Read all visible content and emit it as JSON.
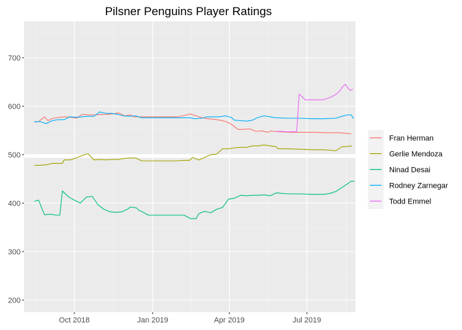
{
  "chart_data": {
    "type": "line",
    "title": "Pilsner Penguins Player Ratings",
    "xlabel": "",
    "ylabel": "",
    "xlim": [
      "2018-08-03",
      "2019-08-27"
    ],
    "ylim": [
      175,
      775
    ],
    "x_ticks": [
      {
        "date": "2018-10-01",
        "label": "Oct 2018"
      },
      {
        "date": "2019-01-01",
        "label": "Jan 2019"
      },
      {
        "date": "2019-04-01",
        "label": "Apr 2019"
      },
      {
        "date": "2019-07-01",
        "label": "Jul 2019"
      }
    ],
    "y_ticks": [
      200,
      300,
      400,
      500,
      600,
      700
    ],
    "grid": true,
    "reference_line": {
      "y": 497,
      "color": "#ffffff"
    },
    "legend": {
      "position": "right"
    },
    "series": [
      {
        "name": "Fran Herman",
        "color": "#F8766D",
        "points": [
          [
            "2018-08-15",
            567
          ],
          [
            "2018-08-20",
            568
          ],
          [
            "2018-08-27",
            578
          ],
          [
            "2018-08-31",
            570
          ],
          [
            "2018-09-06",
            575
          ],
          [
            "2018-09-14",
            577
          ],
          [
            "2018-09-20",
            578
          ],
          [
            "2018-09-27",
            577
          ],
          [
            "2018-10-01",
            576
          ],
          [
            "2018-10-04",
            575
          ],
          [
            "2018-10-10",
            583
          ],
          [
            "2018-10-18",
            582
          ],
          [
            "2018-10-25",
            582
          ],
          [
            "2018-11-01",
            583
          ],
          [
            "2018-11-08",
            583
          ],
          [
            "2018-11-15",
            584
          ],
          [
            "2018-11-22",
            586
          ],
          [
            "2018-11-29",
            580
          ],
          [
            "2018-12-06",
            582
          ],
          [
            "2018-12-10",
            578
          ],
          [
            "2018-12-20",
            578
          ],
          [
            "2019-01-03",
            578
          ],
          [
            "2019-01-17",
            578
          ],
          [
            "2019-01-31",
            578
          ],
          [
            "2019-02-10",
            582
          ],
          [
            "2019-02-14",
            584
          ],
          [
            "2019-02-21",
            580
          ],
          [
            "2019-02-28",
            576
          ],
          [
            "2019-03-07",
            574
          ],
          [
            "2019-03-14",
            573
          ],
          [
            "2019-03-21",
            571
          ],
          [
            "2019-03-28",
            568
          ],
          [
            "2019-04-01",
            565
          ],
          [
            "2019-04-04",
            562
          ],
          [
            "2019-04-11",
            552
          ],
          [
            "2019-04-18",
            552
          ],
          [
            "2019-04-25",
            553
          ],
          [
            "2019-05-02",
            548
          ],
          [
            "2019-05-09",
            549
          ],
          [
            "2019-05-16",
            546
          ],
          [
            "2019-05-20",
            549
          ],
          [
            "2019-05-23",
            548
          ],
          [
            "2019-05-30",
            547
          ],
          [
            "2019-06-13",
            546
          ],
          [
            "2019-06-27",
            546
          ],
          [
            "2019-07-11",
            546
          ],
          [
            "2019-07-25",
            545
          ],
          [
            "2019-08-01",
            545
          ],
          [
            "2019-08-08",
            545
          ],
          [
            "2019-08-15",
            544
          ],
          [
            "2019-08-22",
            543
          ]
        ]
      },
      {
        "name": "Gerlie Mendoza",
        "color": "#A3A500",
        "points": [
          [
            "2018-08-15",
            478
          ],
          [
            "2018-08-22",
            478
          ],
          [
            "2018-08-29",
            479
          ],
          [
            "2018-09-05",
            482
          ],
          [
            "2018-09-10",
            482
          ],
          [
            "2018-09-17",
            482
          ],
          [
            "2018-09-19",
            489
          ],
          [
            "2018-09-26",
            489
          ],
          [
            "2018-10-03",
            493
          ],
          [
            "2018-10-10",
            498
          ],
          [
            "2018-10-17",
            502
          ],
          [
            "2018-10-24",
            489
          ],
          [
            "2018-10-31",
            490
          ],
          [
            "2018-11-07",
            489
          ],
          [
            "2018-11-14",
            490
          ],
          [
            "2018-11-21",
            490
          ],
          [
            "2018-11-28",
            492
          ],
          [
            "2018-12-05",
            493
          ],
          [
            "2018-12-12",
            493
          ],
          [
            "2018-12-19",
            487
          ],
          [
            "2019-01-02",
            487
          ],
          [
            "2019-01-16",
            487
          ],
          [
            "2019-01-30",
            487
          ],
          [
            "2019-02-06",
            488
          ],
          [
            "2019-02-13",
            488
          ],
          [
            "2019-02-17",
            494
          ],
          [
            "2019-02-24",
            489
          ],
          [
            "2019-03-03",
            494
          ],
          [
            "2019-03-10",
            500
          ],
          [
            "2019-03-17",
            501
          ],
          [
            "2019-03-24",
            512
          ],
          [
            "2019-03-31",
            512
          ],
          [
            "2019-04-07",
            514
          ],
          [
            "2019-04-14",
            515
          ],
          [
            "2019-04-21",
            515
          ],
          [
            "2019-04-28",
            518
          ],
          [
            "2019-05-05",
            518
          ],
          [
            "2019-05-12",
            520
          ],
          [
            "2019-05-19",
            518
          ],
          [
            "2019-05-26",
            516
          ],
          [
            "2019-05-28",
            512
          ],
          [
            "2019-06-09",
            512
          ],
          [
            "2019-06-23",
            511
          ],
          [
            "2019-07-07",
            510
          ],
          [
            "2019-07-21",
            510
          ],
          [
            "2019-07-28",
            509
          ],
          [
            "2019-08-04",
            508
          ],
          [
            "2019-08-11",
            516
          ],
          [
            "2019-08-18",
            517
          ],
          [
            "2019-08-23",
            518
          ]
        ]
      },
      {
        "name": "Ninad Desai",
        "color": "#00BF7D",
        "points": [
          [
            "2018-08-15",
            404
          ],
          [
            "2018-08-20",
            406
          ],
          [
            "2018-08-27",
            376
          ],
          [
            "2018-09-03",
            377
          ],
          [
            "2018-09-10",
            375
          ],
          [
            "2018-09-14",
            375
          ],
          [
            "2018-09-17",
            425
          ],
          [
            "2018-09-24",
            413
          ],
          [
            "2018-10-01",
            406
          ],
          [
            "2018-10-08",
            400
          ],
          [
            "2018-10-15",
            412
          ],
          [
            "2018-10-22",
            414
          ],
          [
            "2018-10-29",
            396
          ],
          [
            "2018-11-05",
            387
          ],
          [
            "2018-11-12",
            382
          ],
          [
            "2018-11-19",
            381
          ],
          [
            "2018-11-26",
            382
          ],
          [
            "2018-12-03",
            388
          ],
          [
            "2018-12-06",
            392
          ],
          [
            "2018-12-13",
            390
          ],
          [
            "2018-12-16",
            385
          ],
          [
            "2018-12-20",
            382
          ],
          [
            "2018-12-27",
            375
          ],
          [
            "2019-01-10",
            375
          ],
          [
            "2019-01-24",
            375
          ],
          [
            "2019-02-07",
            375
          ],
          [
            "2019-02-14",
            368
          ],
          [
            "2019-02-21",
            368
          ],
          [
            "2019-02-24",
            378
          ],
          [
            "2019-03-03",
            383
          ],
          [
            "2019-03-10",
            380
          ],
          [
            "2019-03-17",
            387
          ],
          [
            "2019-03-24",
            391
          ],
          [
            "2019-03-31",
            408
          ],
          [
            "2019-04-07",
            410
          ],
          [
            "2019-04-14",
            416
          ],
          [
            "2019-04-21",
            415
          ],
          [
            "2019-04-28",
            416
          ],
          [
            "2019-05-05",
            416
          ],
          [
            "2019-05-12",
            417
          ],
          [
            "2019-05-19",
            415
          ],
          [
            "2019-05-26",
            421
          ],
          [
            "2019-06-02",
            420
          ],
          [
            "2019-06-09",
            419
          ],
          [
            "2019-06-23",
            419
          ],
          [
            "2019-07-07",
            418
          ],
          [
            "2019-07-21",
            418
          ],
          [
            "2019-07-28",
            420
          ],
          [
            "2019-08-04",
            424
          ],
          [
            "2019-08-11",
            432
          ],
          [
            "2019-08-18",
            440
          ],
          [
            "2019-08-22",
            445
          ],
          [
            "2019-08-26",
            445
          ]
        ]
      },
      {
        "name": "Rodney Zarnegar",
        "color": "#00B0F6",
        "points": [
          [
            "2018-08-15",
            568
          ],
          [
            "2018-08-22",
            568
          ],
          [
            "2018-08-29",
            564
          ],
          [
            "2018-09-05",
            570
          ],
          [
            "2018-09-12",
            572
          ],
          [
            "2018-09-19",
            572
          ],
          [
            "2018-09-26",
            578
          ],
          [
            "2018-10-03",
            577
          ],
          [
            "2018-10-10",
            578
          ],
          [
            "2018-10-17",
            579
          ],
          [
            "2018-10-24",
            579
          ],
          [
            "2018-10-31",
            588
          ],
          [
            "2018-11-07",
            585
          ],
          [
            "2018-11-14",
            585
          ],
          [
            "2018-11-21",
            583
          ],
          [
            "2018-11-28",
            580
          ],
          [
            "2018-12-05",
            579
          ],
          [
            "2018-12-12",
            580
          ],
          [
            "2018-12-19",
            576
          ],
          [
            "2019-01-02",
            576
          ],
          [
            "2019-01-16",
            576
          ],
          [
            "2019-01-30",
            576
          ],
          [
            "2019-02-13",
            576
          ],
          [
            "2019-02-20",
            574
          ],
          [
            "2019-02-27",
            575
          ],
          [
            "2019-03-06",
            578
          ],
          [
            "2019-03-13",
            578
          ],
          [
            "2019-03-20",
            578
          ],
          [
            "2019-03-27",
            580
          ],
          [
            "2019-04-03",
            577
          ],
          [
            "2019-04-07",
            571
          ],
          [
            "2019-04-14",
            570
          ],
          [
            "2019-04-21",
            569
          ],
          [
            "2019-04-28",
            571
          ],
          [
            "2019-05-05",
            577
          ],
          [
            "2019-05-12",
            580
          ],
          [
            "2019-05-19",
            578
          ],
          [
            "2019-05-26",
            576
          ],
          [
            "2019-06-09",
            575
          ],
          [
            "2019-06-23",
            575
          ],
          [
            "2019-07-07",
            574
          ],
          [
            "2019-07-21",
            574
          ],
          [
            "2019-08-04",
            575
          ],
          [
            "2019-08-11",
            579
          ],
          [
            "2019-08-18",
            582
          ],
          [
            "2019-08-22",
            582
          ],
          [
            "2019-08-25",
            574
          ]
        ]
      },
      {
        "name": "Todd Emmel",
        "color": "#E76BF3",
        "points": [
          [
            "2019-05-25",
            548
          ],
          [
            "2019-06-01",
            548
          ],
          [
            "2019-06-08",
            547
          ],
          [
            "2019-06-15",
            547
          ],
          [
            "2019-06-19",
            547
          ],
          [
            "2019-06-22",
            625
          ],
          [
            "2019-06-29",
            613
          ],
          [
            "2019-07-06",
            613
          ],
          [
            "2019-07-13",
            613
          ],
          [
            "2019-07-20",
            613
          ],
          [
            "2019-07-27",
            617
          ],
          [
            "2019-08-03",
            623
          ],
          [
            "2019-08-08",
            630
          ],
          [
            "2019-08-12",
            640
          ],
          [
            "2019-08-15",
            645
          ],
          [
            "2019-08-18",
            638
          ],
          [
            "2019-08-21",
            632
          ],
          [
            "2019-08-24",
            635
          ]
        ]
      }
    ]
  }
}
